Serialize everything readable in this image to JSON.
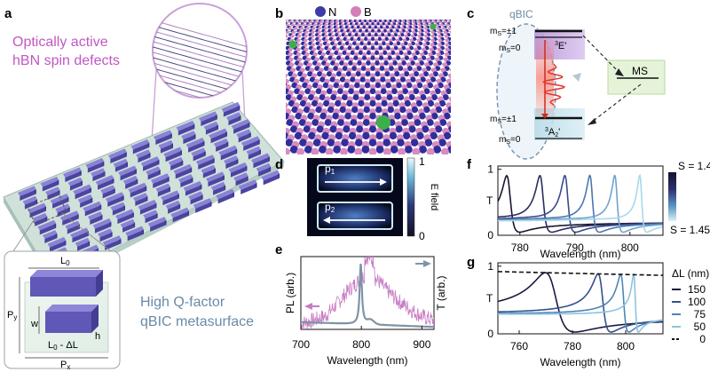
{
  "panels": {
    "a": {
      "letter": "a",
      "title_line1": "Optically active",
      "title_line2": "hBN spin defects",
      "inset": {
        "label_L0": "L",
        "sub0": "0",
        "label_Py": "P",
        "suby": "y",
        "label_w": "w",
        "label_h": "h",
        "label_L0dL": "L",
        "sub0b": "0",
        "dl": " - ΔL",
        "label_Px": "P",
        "subx": "x"
      },
      "caption_line1": "High Q-factor",
      "caption_line2": "qBIC metasurface"
    },
    "b": {
      "letter": "b",
      "legend_N": "N",
      "legend_B": "B"
    },
    "c": {
      "letter": "c",
      "qbic_label": "qBIC",
      "ms_upper_pm": "m",
      "ms_upper_pm_sub": "S",
      "ms_upper_pm_val": "=±1",
      "ms_upper_0": "m",
      "ms_upper_0_sub": "S",
      "ms_upper_0_val": "=0",
      "excited_state_sup": "3",
      "excited_state": "E'",
      "ms_box": "MS",
      "ms_lower_pm": "m",
      "ms_lower_pm_sub": "S",
      "ms_lower_pm_val": "=±1",
      "ms_lower_0": "m",
      "ms_lower_0_sub": "S",
      "ms_lower_0_val": "=0",
      "ground_state_sup": "3",
      "ground_state": "A",
      "ground_state_sub": "2",
      "ground_state_prime": "'"
    },
    "d": {
      "letter": "d",
      "p1": "p",
      "p1_sub": "1",
      "p2": "p",
      "p2_sub": "2",
      "colorbar_max": "1",
      "colorbar_min": "0",
      "colorbar_label": "E field"
    },
    "e": {
      "letter": "e",
      "ylabel_left": "PL (arb.)",
      "ylabel_right": "T (arb.)",
      "xlabel": "Wavelength (nm)",
      "xticks": [
        "700",
        "800",
        "900"
      ]
    },
    "f": {
      "letter": "f",
      "ylabel": "T",
      "xlabel": "Wavelength (nm)",
      "yticks": [
        "1",
        "0"
      ],
      "xticks": [
        "780",
        "790",
        "800"
      ],
      "colorbar_top": "S = 1.4",
      "colorbar_bottom": "S = 1.45"
    },
    "g": {
      "letter": "g",
      "ylabel": "T",
      "xlabel": "Wavelength (nm)",
      "yticks": [
        "1",
        "0"
      ],
      "xticks": [
        "760",
        "780",
        "800"
      ],
      "legend_title": "ΔL (nm)",
      "legend": [
        "150",
        "100",
        "75",
        "50",
        "0"
      ]
    }
  },
  "chart_data": [
    {
      "type": "line",
      "panel": "e",
      "xlabel": "Wavelength (nm)",
      "ylabel": "PL (arb.)",
      "y2label": "T (arb.)",
      "xlim": [
        700,
        920
      ],
      "series": [
        {
          "name": "PL",
          "color": "#c77dc4",
          "x": [
            700,
            720,
            740,
            760,
            780,
            790,
            800,
            810,
            820,
            830,
            840,
            860,
            880,
            900,
            920
          ],
          "y": [
            0.08,
            0.12,
            0.18,
            0.35,
            0.55,
            0.62,
            0.7,
            0.78,
            0.72,
            0.65,
            0.55,
            0.4,
            0.28,
            0.18,
            0.12
          ]
        },
        {
          "name": "T",
          "color": "#7f93a6",
          "x": [
            700,
            740,
            780,
            795,
            800,
            805,
            815,
            820,
            830,
            860,
            900,
            920
          ],
          "y": [
            0.92,
            0.93,
            0.92,
            0.88,
            0.1,
            0.85,
            0.98,
            0.95,
            0.9,
            0.88,
            0.87,
            0.86
          ]
        }
      ]
    },
    {
      "type": "line",
      "panel": "f",
      "xlabel": "Wavelength (nm)",
      "ylabel": "T",
      "xlim": [
        776,
        806
      ],
      "ylim": [
        0,
        1.05
      ],
      "resonances": [
        778,
        784,
        788.5,
        793,
        797.5,
        802
      ],
      "colors": [
        "#1a1530",
        "#2b2c5e",
        "#364c8a",
        "#4a77b0",
        "#6fa4cc",
        "#a8d8ea"
      ]
    },
    {
      "type": "line",
      "panel": "g",
      "xlabel": "Wavelength (nm)",
      "ylabel": "T",
      "xlim": [
        752,
        814
      ],
      "ylim": [
        0,
        1.05
      ],
      "series": [
        {
          "name": "150",
          "center": 773,
          "width": 5,
          "color": "#1a1a40"
        },
        {
          "name": "100",
          "center": 791,
          "width": 2.2,
          "color": "#34508c"
        },
        {
          "name": "75",
          "center": 799,
          "width": 1.4,
          "color": "#4f84b6"
        },
        {
          "name": "50",
          "center": 803.5,
          "width": 0.8,
          "color": "#8cc4df"
        },
        {
          "name": "0",
          "center": null,
          "width": 0,
          "color": "#111111"
        }
      ]
    }
  ]
}
